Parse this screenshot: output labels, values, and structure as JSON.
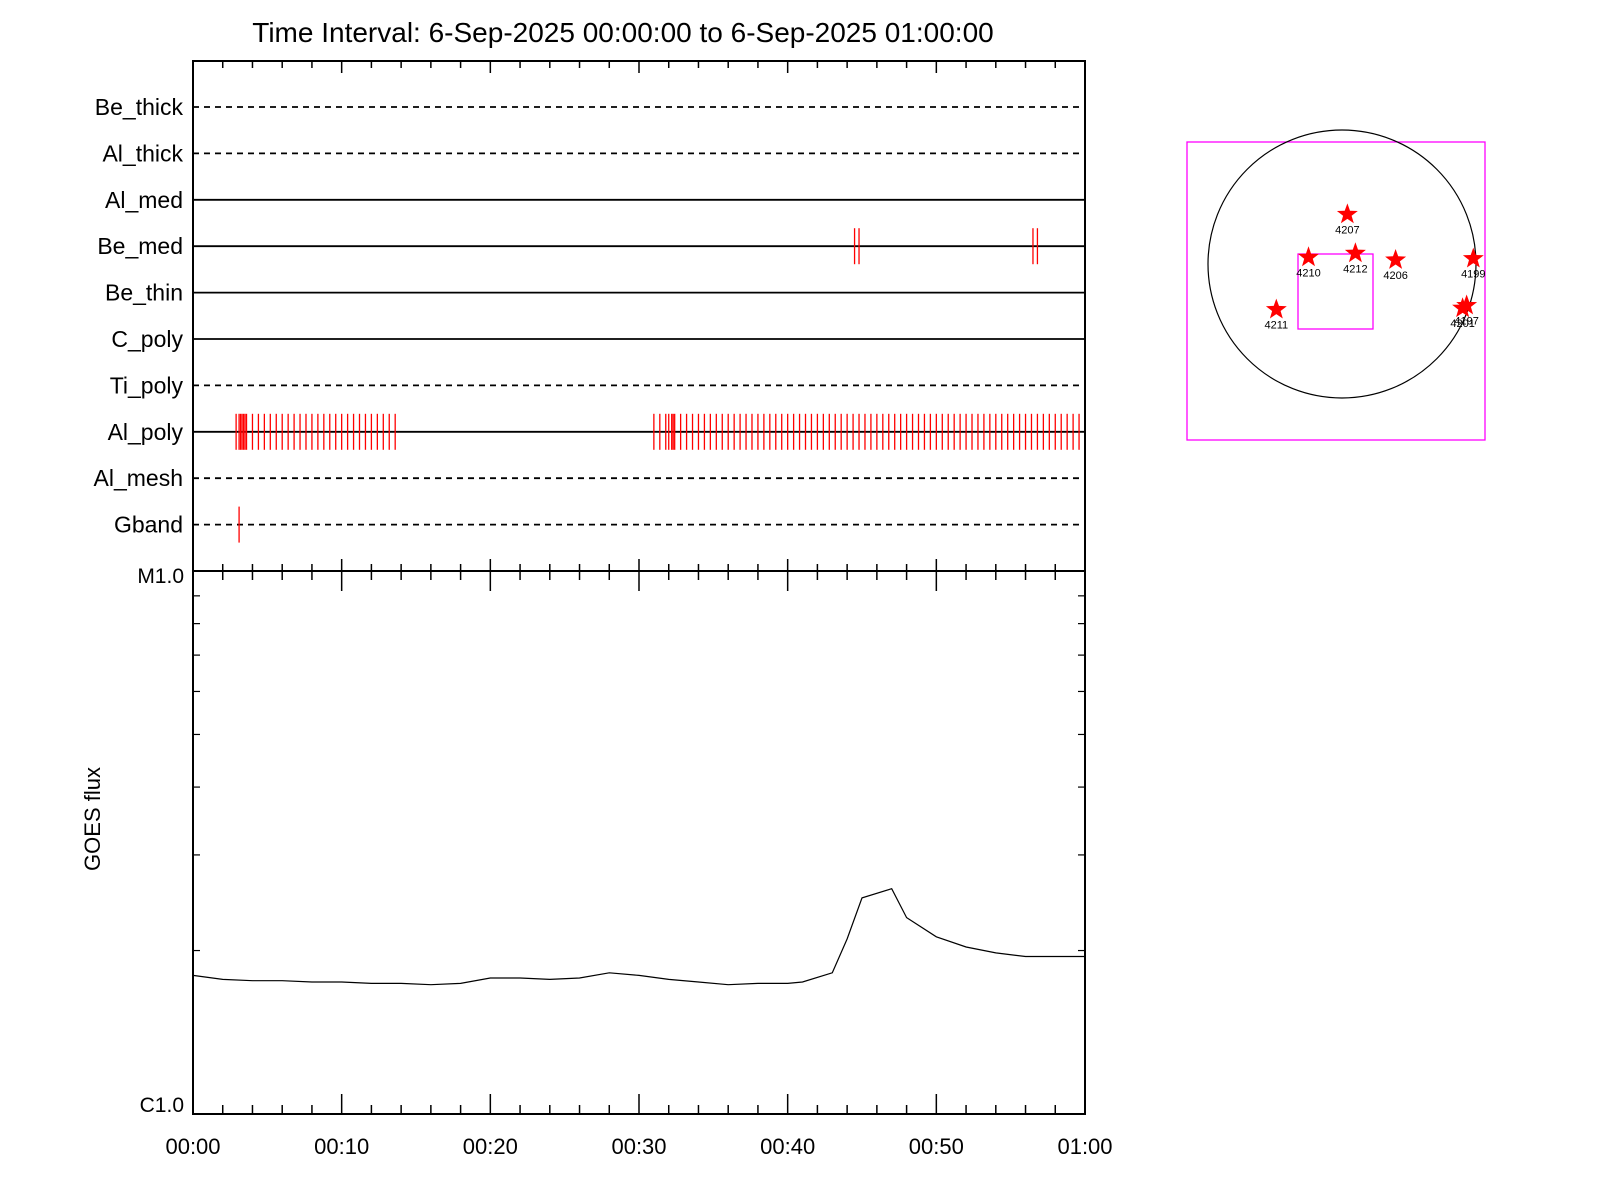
{
  "title": "Time Interval:  6-Sep-2025 00:00:00 to  6-Sep-2025 01:00:00",
  "colors": {
    "axis": "#000000",
    "event": "#ff0000",
    "marker": "#ff0000",
    "fov_box": "#ff00ff",
    "disk": "#000000"
  },
  "chart_data": [
    {
      "type": "timeline",
      "x_range": [
        "00:00",
        "01:00"
      ],
      "x_unit": "minutes",
      "filters": [
        {
          "name": "Be_thick",
          "line": "dashed",
          "events": []
        },
        {
          "name": "Al_thick",
          "line": "dashed",
          "events": []
        },
        {
          "name": "Al_med",
          "line": "solid",
          "events": []
        },
        {
          "name": "Be_med",
          "line": "solid",
          "events": [
            44.5,
            44.8,
            56.5,
            56.8
          ]
        },
        {
          "name": "Be_thin",
          "line": "solid",
          "events": []
        },
        {
          "name": "C_poly",
          "line": "solid",
          "events": []
        },
        {
          "name": "Ti_poly",
          "line": "dashed",
          "events": []
        },
        {
          "name": "Al_poly",
          "line": "solid",
          "events": [
            2.9,
            3.1,
            3.2,
            3.3,
            3.4,
            3.5,
            3.6,
            4.0,
            4.4,
            4.8,
            5.2,
            5.6,
            6.0,
            6.4,
            6.8,
            7.2,
            7.6,
            8.0,
            8.4,
            8.8,
            9.2,
            9.6,
            10.0,
            10.4,
            10.8,
            11.2,
            11.6,
            12.0,
            12.4,
            12.8,
            13.2,
            13.6,
            31.0,
            31.4,
            31.8,
            32.0,
            32.2,
            32.3,
            32.4,
            32.8,
            33.2,
            33.6,
            34.0,
            34.4,
            34.8,
            35.2,
            35.6,
            36.0,
            36.4,
            36.8,
            37.2,
            37.6,
            38.0,
            38.4,
            38.8,
            39.2,
            39.6,
            40.0,
            40.4,
            40.8,
            41.2,
            41.6,
            42.0,
            42.4,
            42.8,
            43.2,
            43.6,
            44.0,
            44.4,
            44.8,
            45.2,
            45.6,
            46.0,
            46.4,
            46.8,
            47.2,
            47.6,
            48.0,
            48.4,
            48.8,
            49.2,
            49.6,
            50.0,
            50.4,
            50.8,
            51.2,
            51.6,
            52.0,
            52.4,
            52.8,
            53.2,
            53.6,
            54.0,
            54.4,
            54.8,
            55.2,
            55.6,
            56.0,
            56.4,
            56.8,
            57.2,
            57.6,
            58.0,
            58.4,
            58.8,
            59.2,
            59.6
          ]
        },
        {
          "name": "Al_mesh",
          "line": "dashed",
          "events": []
        },
        {
          "name": "Gband",
          "line": "dashed",
          "events": [
            3.1
          ]
        }
      ]
    },
    {
      "type": "line",
      "ylabel": "GOES flux",
      "y_scale": "log",
      "ylim": [
        1e-06,
        1e-05
      ],
      "y_tick_labels": [
        "C1.0",
        "M1.0"
      ],
      "x_tick_labels": [
        "00:00",
        "00:10",
        "00:20",
        "00:30",
        "00:40",
        "00:50",
        "01:00"
      ],
      "x_minutes": [
        0,
        2,
        4,
        6,
        8,
        10,
        12,
        14,
        16,
        18,
        20,
        22,
        24,
        26,
        28,
        30,
        32,
        34,
        36,
        38,
        40,
        41,
        43,
        44,
        45,
        47,
        48,
        50,
        52,
        54,
        56,
        58,
        60
      ],
      "values": [
        1.8e-06,
        1.77e-06,
        1.76e-06,
        1.76e-06,
        1.75e-06,
        1.75e-06,
        1.74e-06,
        1.74e-06,
        1.73e-06,
        1.74e-06,
        1.78e-06,
        1.78e-06,
        1.77e-06,
        1.78e-06,
        1.82e-06,
        1.8e-06,
        1.77e-06,
        1.75e-06,
        1.73e-06,
        1.74e-06,
        1.74e-06,
        1.75e-06,
        1.82e-06,
        2.1e-06,
        2.5e-06,
        2.6e-06,
        2.3e-06,
        2.12e-06,
        2.03e-06,
        1.98e-06,
        1.95e-06,
        1.95e-06,
        1.95e-06
      ]
    },
    {
      "type": "scatter",
      "regions": [
        {
          "label": "4207",
          "x": 0.04,
          "y": 0.37
        },
        {
          "label": "4210",
          "x": -0.25,
          "y": 0.05
        },
        {
          "label": "4212",
          "x": 0.1,
          "y": 0.08
        },
        {
          "label": "4206",
          "x": 0.4,
          "y": 0.03
        },
        {
          "label": "4199",
          "x": 0.98,
          "y": 0.04
        },
        {
          "label": "4211",
          "x": -0.49,
          "y": -0.34
        },
        {
          "label": "4197",
          "x": 0.93,
          "y": -0.31
        },
        {
          "label": "4201",
          "x": 0.9,
          "y": -0.33
        }
      ]
    }
  ]
}
